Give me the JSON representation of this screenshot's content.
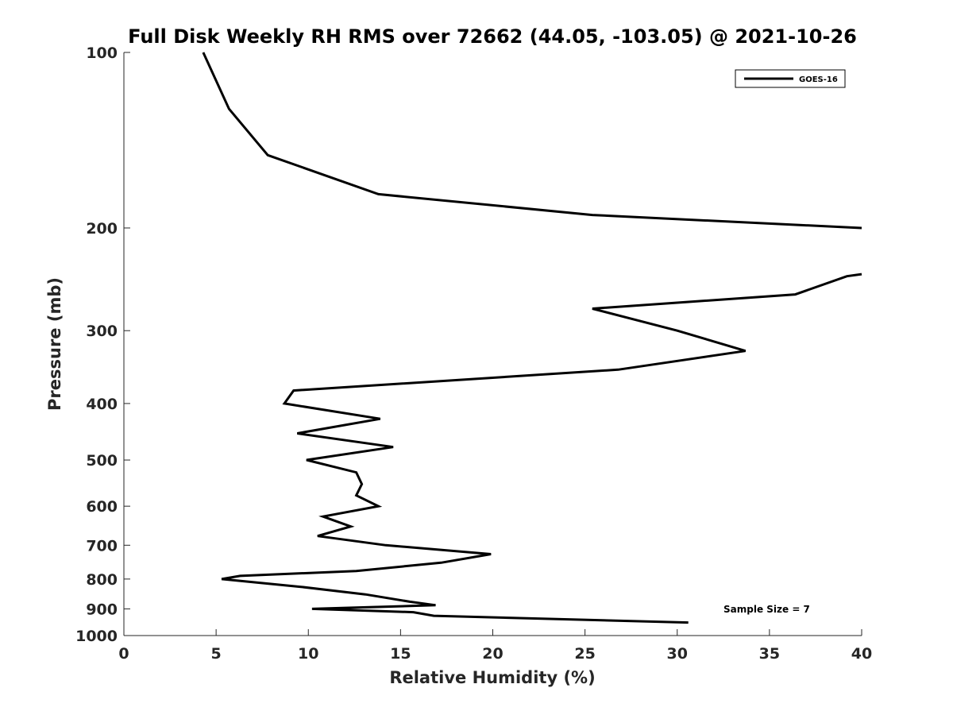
{
  "chart_data": {
    "type": "line",
    "title": "Full Disk Weekly RH RMS over 72662 (44.05, -103.05) @ 2021-10-26",
    "xlabel": "Relative Humidity (%)",
    "ylabel": "Pressure (mb)",
    "xlim": [
      0,
      40
    ],
    "ylim": [
      100,
      1000
    ],
    "y_scale": "log",
    "y_reversed": true,
    "xticks": [
      0,
      5,
      10,
      15,
      20,
      25,
      30,
      35,
      40
    ],
    "yticks": [
      100,
      200,
      300,
      400,
      500,
      600,
      700,
      800,
      900,
      1000
    ],
    "grid": false,
    "legend_position": "top-right",
    "line_color": "#000000",
    "annotation": "Sample Size = 7",
    "series": [
      {
        "name": "GOES-16",
        "segments": [
          [
            [
              4.3,
              100
            ],
            [
              5.7,
              125
            ],
            [
              7.8,
              150
            ],
            [
              13.8,
              175
            ],
            [
              25.4,
              190
            ],
            [
              40.0,
              200
            ]
          ],
          [
            [
              40.0,
              240
            ],
            [
              39.2,
              242
            ],
            [
              36.4,
              260
            ],
            [
              25.4,
              275
            ],
            [
              30.0,
              300
            ],
            [
              33.7,
              325
            ],
            [
              26.8,
              350
            ],
            [
              9.2,
              380
            ],
            [
              8.7,
              400
            ],
            [
              13.9,
              425
            ],
            [
              9.4,
              450
            ],
            [
              14.6,
              475
            ],
            [
              9.9,
              500
            ],
            [
              12.6,
              525
            ],
            [
              12.9,
              550
            ],
            [
              12.6,
              575
            ],
            [
              13.8,
              600
            ],
            [
              10.8,
              625
            ],
            [
              12.3,
              650
            ],
            [
              10.5,
              675
            ],
            [
              14.2,
              700
            ],
            [
              19.9,
              725
            ],
            [
              17.2,
              750
            ],
            [
              12.6,
              775
            ],
            [
              6.3,
              790
            ],
            [
              5.3,
              800
            ],
            [
              9.6,
              825
            ],
            [
              13.1,
              850
            ],
            [
              15.5,
              875
            ],
            [
              16.9,
              887
            ],
            [
              10.2,
              900
            ],
            [
              15.7,
              912
            ],
            [
              16.8,
              925
            ],
            [
              30.6,
              950
            ]
          ]
        ]
      }
    ]
  }
}
